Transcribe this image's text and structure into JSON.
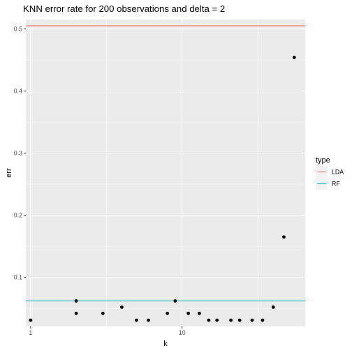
{
  "chart_data": {
    "type": "scatter",
    "title": "KNN error rate for 200 observations and delta = 2",
    "xlabel": "k",
    "ylabel": "err",
    "xscale": "log10",
    "xlim": [
      0.93,
      65
    ],
    "ylim": [
      0.021,
      0.515
    ],
    "x_ticks": [
      1,
      10
    ],
    "x_tick_labels": [
      "1",
      "10"
    ],
    "y_ticks": [
      0.1,
      0.2,
      0.3,
      0.4,
      0.5
    ],
    "y_tick_labels": [
      "0.1",
      "0.2",
      "0.3",
      "0.4",
      "0.5"
    ],
    "points": [
      {
        "x": 1,
        "y": 0.031
      },
      {
        "x": 2,
        "y": 0.062
      },
      {
        "x": 2,
        "y": 0.042
      },
      {
        "x": 3,
        "y": 0.042
      },
      {
        "x": 4,
        "y": 0.052
      },
      {
        "x": 5,
        "y": 0.031
      },
      {
        "x": 6,
        "y": 0.031
      },
      {
        "x": 8,
        "y": 0.042
      },
      {
        "x": 9,
        "y": 0.062
      },
      {
        "x": 11,
        "y": 0.042
      },
      {
        "x": 13,
        "y": 0.042
      },
      {
        "x": 15,
        "y": 0.031
      },
      {
        "x": 17,
        "y": 0.031
      },
      {
        "x": 21,
        "y": 0.031
      },
      {
        "x": 24,
        "y": 0.031
      },
      {
        "x": 29,
        "y": 0.031
      },
      {
        "x": 34,
        "y": 0.031
      },
      {
        "x": 40,
        "y": 0.052
      },
      {
        "x": 47,
        "y": 0.165
      },
      {
        "x": 55,
        "y": 0.454
      }
    ],
    "hlines": [
      {
        "type": "LDA",
        "y": 0.505,
        "color": "#F8766D"
      },
      {
        "type": "RF",
        "y": 0.062,
        "color": "#00BFC4"
      }
    ],
    "legend": {
      "title": "type",
      "position": "right",
      "entries": [
        {
          "label": "LDA",
          "color": "#F8766D"
        },
        {
          "label": "RF",
          "color": "#00BFC4"
        }
      ]
    },
    "grid": true,
    "colors": {
      "panel_background": "#EBEBEB",
      "grid_major": "#FFFFFF",
      "point": "#000000"
    }
  }
}
